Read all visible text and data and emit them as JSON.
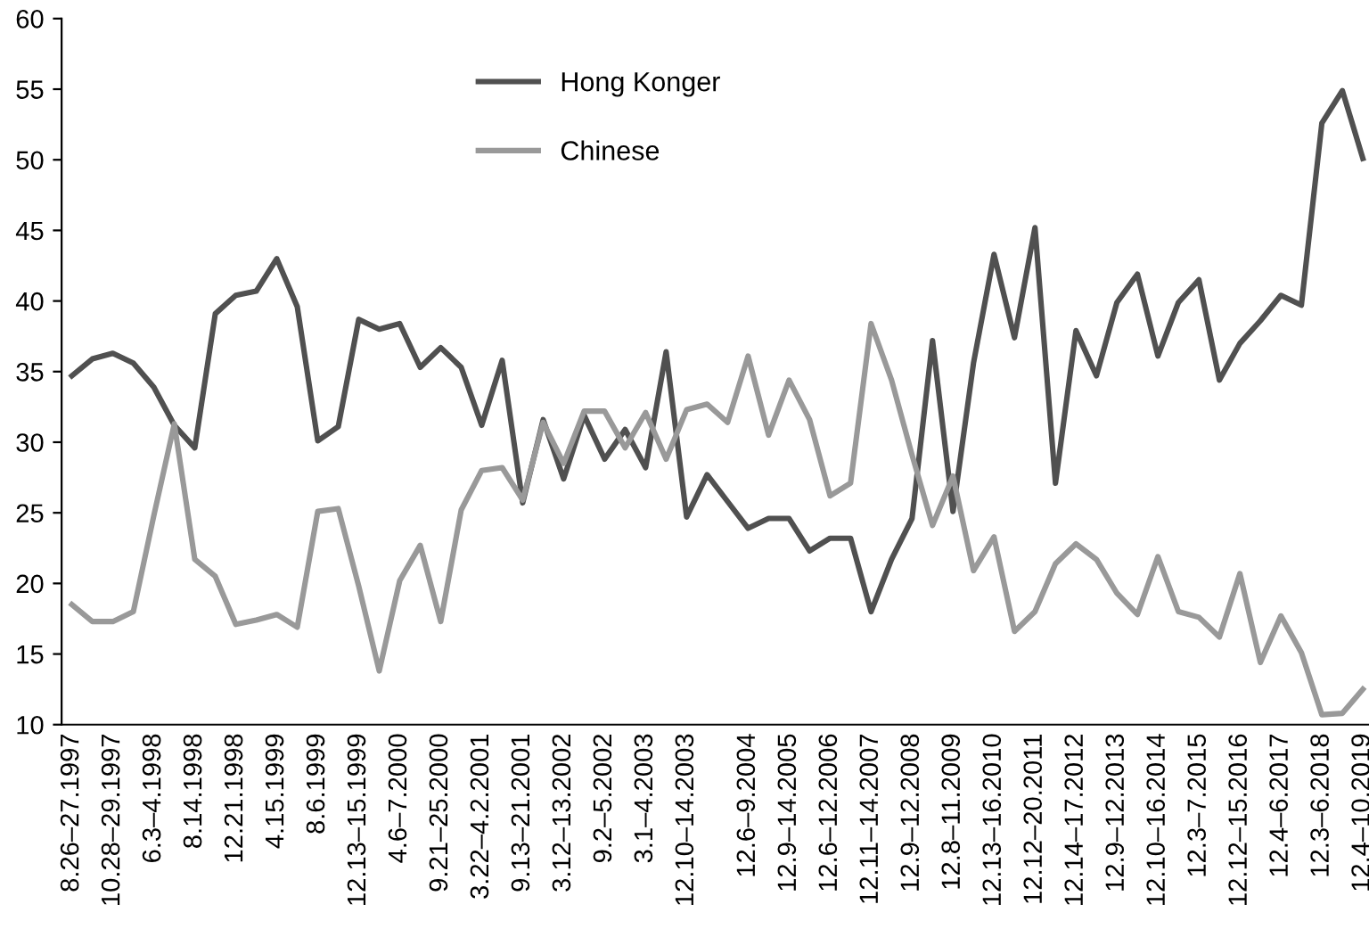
{
  "chart_data": {
    "type": "line",
    "categories": [
      "8.26–27.1997",
      null,
      "10.28–29.1997",
      null,
      "6.3–4.1998",
      null,
      "8.14.1998",
      null,
      "12.21.1998",
      null,
      "4.15.1999",
      null,
      "8.6.1999",
      null,
      "12.13–15.1999",
      null,
      "4.6–7.2000",
      null,
      "9.21–25.2000",
      null,
      "3.22–4.2.2001",
      null,
      "9.13–21.2001",
      null,
      "3.12–13.2002",
      null,
      "9.2–5.2002",
      null,
      "3.1–4.2003",
      null,
      "12.10–14.2003",
      null,
      null,
      "12.6–9.2004",
      null,
      "12.9–14.2005",
      null,
      "12.6–12.2006",
      null,
      "12.11–14.2007",
      null,
      "12.9–12.2008",
      null,
      "12.8–11.2009",
      null,
      "12.13–16.2010",
      null,
      "12.12–20.2011",
      null,
      "12.14–17.2012",
      null,
      "12.9–12.2013",
      null,
      "12.10–16.2014",
      null,
      "12.3–7.2015",
      null,
      "12.12–15.2016",
      null,
      "12.4–6.2017",
      null,
      "12.3–6.2018",
      null,
      "12.4–10.2019"
    ],
    "series": [
      {
        "name": "Hong Konger",
        "color": "#505050",
        "values": [
          34.7,
          35.9,
          36.3,
          35.6,
          33.9,
          31.2,
          29.6,
          39.1,
          40.4,
          40.7,
          43.0,
          39.6,
          30.1,
          31.1,
          38.7,
          38.0,
          38.4,
          35.3,
          36.7,
          35.3,
          31.2,
          35.8,
          25.7,
          31.6,
          27.4,
          31.9,
          28.8,
          30.9,
          28.2,
          36.4,
          24.7,
          27.7,
          25.8,
          23.9,
          24.6,
          24.6,
          22.3,
          23.2,
          23.2,
          18.0,
          21.7,
          24.6,
          37.2,
          25.1,
          35.6,
          43.3,
          37.4,
          45.2,
          27.1,
          37.9,
          34.7,
          39.9,
          41.9,
          36.1,
          39.9,
          41.5,
          34.4,
          37.0,
          38.6,
          40.4,
          39.7,
          52.6,
          54.9,
          50.1
        ]
      },
      {
        "name": "Chinese",
        "color": "#999999",
        "values": [
          18.5,
          17.3,
          17.3,
          18.0,
          24.8,
          31.3,
          21.7,
          20.5,
          17.1,
          17.4,
          17.8,
          16.9,
          25.1,
          25.3,
          19.8,
          13.8,
          20.2,
          22.7,
          17.3,
          25.2,
          28.0,
          28.2,
          25.9,
          31.4,
          28.5,
          32.2,
          32.2,
          29.6,
          32.1,
          28.8,
          32.3,
          32.7,
          31.4,
          36.1,
          30.5,
          34.4,
          31.6,
          26.2,
          27.1,
          38.4,
          34.4,
          29.1,
          24.1,
          27.6,
          20.9,
          23.3,
          16.6,
          18.0,
          21.4,
          22.8,
          21.7,
          19.3,
          17.8,
          21.9,
          18.0,
          17.6,
          16.2,
          20.7,
          14.4,
          17.7,
          15.1,
          10.7,
          10.8,
          12.5
        ]
      }
    ],
    "ylim": [
      10,
      60
    ],
    "yticks": [
      10,
      15,
      20,
      25,
      30,
      35,
      40,
      45,
      50,
      55,
      60
    ],
    "grid": false,
    "legend": "top",
    "marker": "none",
    "line_style": "solid"
  }
}
